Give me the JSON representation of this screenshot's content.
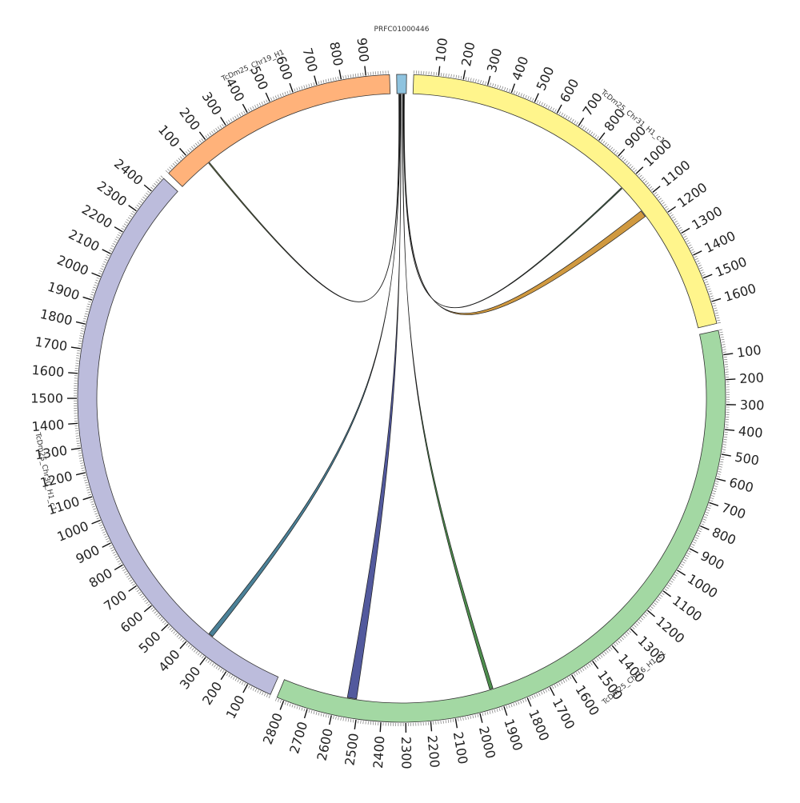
{
  "diagram": {
    "type": "circos",
    "tick_interval": 100,
    "minor_ticks_per_label": 10,
    "stroke_color": "#333333",
    "chromosomes": [
      {
        "id": "contig",
        "name": "PRFC01000446",
        "length": 40,
        "color": "#8ec3df",
        "show_ticks": false
      },
      {
        "id": "chr31",
        "name": "TcDm25_Chr31_H1_c1",
        "length": 1690,
        "color": "#fff58c",
        "show_ticks": true
      },
      {
        "id": "chr16",
        "name": "TcDm25_Chr16_H1_c1",
        "length": 2830,
        "color": "#a3d8a3",
        "show_ticks": true
      },
      {
        "id": "chr30",
        "name": "TcDm25_Chr30_H1_c1",
        "length": 2470,
        "color": "#bcbcdc",
        "show_ticks": true
      },
      {
        "id": "chr19",
        "name": "TcDm25_Chr19_H1",
        "length": 995,
        "color": "#ffb27a",
        "show_ticks": true
      }
    ],
    "links": [
      {
        "from": "contig",
        "from_pos": 8,
        "to": "chr19",
        "to_pos": 150,
        "to_end": 155,
        "color": "#556b2f"
      },
      {
        "from": "contig",
        "from_pos": 28,
        "to": "chr31",
        "to_pos": 1000,
        "to_end": 1005,
        "color": "#2e5f3a"
      },
      {
        "from": "contig",
        "from_pos": 30,
        "to": "chr31",
        "to_pos": 1130,
        "to_end": 1160,
        "color": "#c8871e"
      },
      {
        "from": "contig",
        "from_pos": 24,
        "to": "chr16",
        "to_pos": 1920,
        "to_end": 1935,
        "color": "#2f7a2f"
      },
      {
        "from": "contig",
        "from_pos": 16,
        "to": "chr16",
        "to_pos": 2510,
        "to_end": 2550,
        "color": "#343c8c"
      },
      {
        "from": "contig",
        "from_pos": 12,
        "to": "chr30",
        "to_pos": 330,
        "to_end": 350,
        "color": "#2b6b86"
      }
    ]
  }
}
